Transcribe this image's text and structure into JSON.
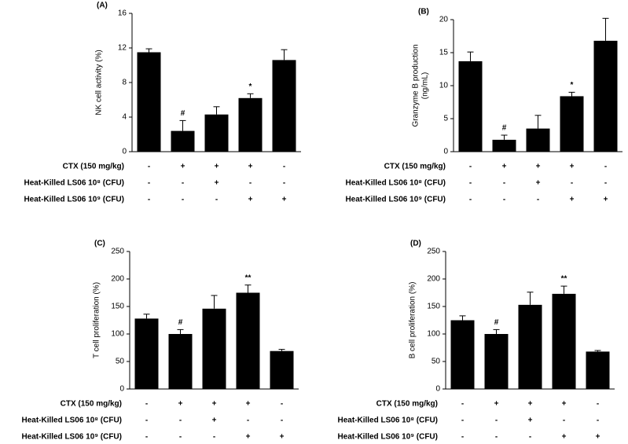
{
  "chart_data": [
    {
      "type": "bar",
      "title": "(A)",
      "ylabel": [
        "NK cell activity (%)"
      ],
      "color": "#000000",
      "values": [
        11.5,
        2.4,
        4.3,
        6.2,
        10.6
      ],
      "errors": [
        0.4,
        1.2,
        0.9,
        0.5,
        1.2
      ],
      "annotations": [
        null,
        "#",
        null,
        "*",
        null
      ],
      "ylim": [
        0,
        16
      ],
      "yticks": [
        0,
        4,
        8,
        12,
        16
      ],
      "treatments": [
        {
          "label": "CTX (150 mg/kg)",
          "signs": [
            "-",
            "+",
            "+",
            "+",
            "-"
          ]
        },
        {
          "label": "Heat-Killed LS06 10⁸ (CFU)",
          "signs": [
            "-",
            "-",
            "+",
            "-",
            "-"
          ]
        },
        {
          "label": "Heat-Killed LS06 10⁹ (CFU)",
          "signs": [
            "-",
            "-",
            "-",
            "+",
            "+"
          ]
        }
      ]
    },
    {
      "type": "bar",
      "title": "(B)",
      "ylabel": [
        "Granzyme B production",
        "(ng/mL)"
      ],
      "color": "#000000",
      "values": [
        13.7,
        1.8,
        3.5,
        8.4,
        16.8
      ],
      "errors": [
        1.4,
        0.7,
        2.0,
        0.6,
        3.4
      ],
      "annotations": [
        null,
        "#",
        null,
        "*",
        null
      ],
      "ylim": [
        0,
        20
      ],
      "yticks": [
        0,
        5,
        10,
        15,
        20
      ],
      "treatments": [
        {
          "label": "CTX (150 mg/kg)",
          "signs": [
            "-",
            "+",
            "+",
            "+",
            "-"
          ]
        },
        {
          "label": "Heat-Killed LS06 10⁸ (CFU)",
          "signs": [
            "-",
            "-",
            "+",
            "-",
            "-"
          ]
        },
        {
          "label": "Heat-Killed LS06 10⁹ (CFU)",
          "signs": [
            "-",
            "-",
            "-",
            "+",
            "+"
          ]
        }
      ]
    },
    {
      "type": "bar",
      "title": "(C)",
      "ylabel": [
        "T cell proliferation (%)"
      ],
      "color": "#000000",
      "values": [
        128,
        100,
        146,
        175,
        69
      ],
      "errors": [
        8,
        8,
        24,
        14,
        3
      ],
      "annotations": [
        null,
        "#",
        null,
        "**",
        null
      ],
      "ylim": [
        0,
        250
      ],
      "yticks": [
        0,
        50,
        100,
        150,
        200,
        250
      ],
      "treatments": [
        {
          "label": "CTX (150 mg/kg)",
          "signs": [
            "-",
            "+",
            "+",
            "+",
            "-"
          ]
        },
        {
          "label": "Heat-Killed LS06 10⁸ (CFU)",
          "signs": [
            "-",
            "-",
            "+",
            "-",
            "-"
          ]
        },
        {
          "label": "Heat-Killed LS06 10⁹ (CFU)",
          "signs": [
            "-",
            "-",
            "-",
            "+",
            "+"
          ]
        }
      ]
    },
    {
      "type": "bar",
      "title": "(D)",
      "ylabel": [
        "B cell proliferation (%)"
      ],
      "color": "#000000",
      "values": [
        125,
        100,
        153,
        173,
        68
      ],
      "errors": [
        8,
        8,
        23,
        14,
        2
      ],
      "annotations": [
        null,
        "#",
        null,
        "**",
        null
      ],
      "ylim": [
        0,
        250
      ],
      "yticks": [
        0,
        50,
        100,
        150,
        200,
        250
      ],
      "treatments": [
        {
          "label": "CTX (150 mg/kg)",
          "signs": [
            "-",
            "+",
            "+",
            "+",
            "-"
          ]
        },
        {
          "label": "Heat-Killed LS06 10⁸ (CFU)",
          "signs": [
            "-",
            "-",
            "+",
            "-",
            "-"
          ]
        },
        {
          "label": "Heat-Killed LS06 10⁹ (CFU)",
          "signs": [
            "-",
            "-",
            "-",
            "+",
            "+"
          ]
        }
      ]
    }
  ]
}
